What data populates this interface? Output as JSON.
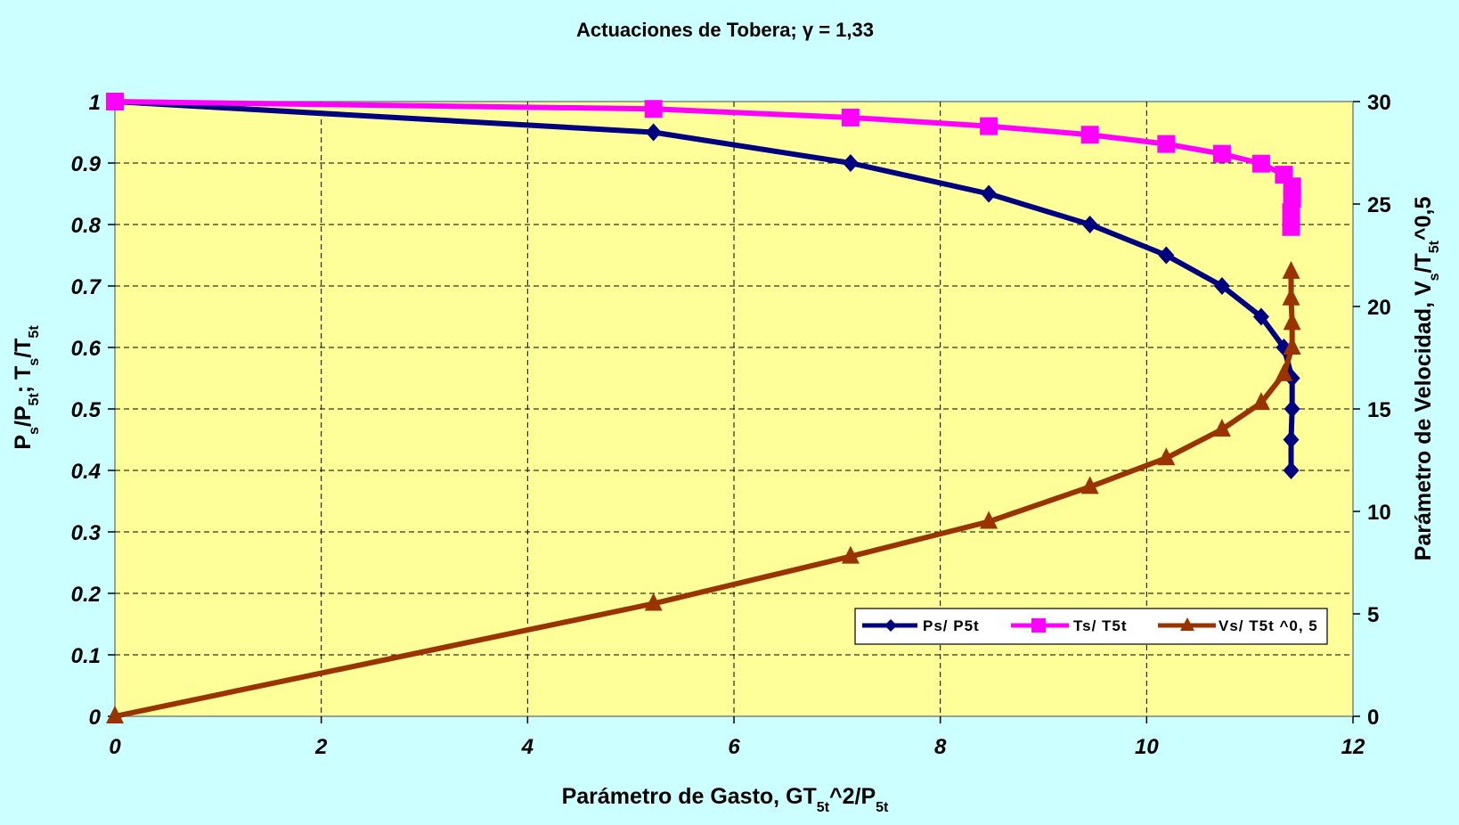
{
  "chart_data": {
    "type": "line",
    "title": "Actuaciones de Tobera; γ = 1,33",
    "xlabel": {
      "base": "Parámetro de Gasto, GT",
      "sub1": "5t",
      "mid": "^2/P",
      "sub2": "5t"
    },
    "ylabel": {
      "p": "P",
      "s1": "s",
      "slash1": "/P",
      "s2": "5t",
      "mid": "; T",
      "s3": "s",
      "slash2": "/T",
      "s4": "5t"
    },
    "y2label": {
      "pre": "Parámetro de Velocidad, V",
      "s1": "s",
      "mid": "/T",
      "s2": "5t",
      "post": "^0,5"
    },
    "xlim": [
      0,
      12
    ],
    "ylim": [
      0,
      1
    ],
    "y2lim": [
      0,
      30
    ],
    "x_ticks": [
      "0",
      "2",
      "4",
      "6",
      "8",
      "10",
      "12"
    ],
    "y_ticks": [
      "0",
      "0.1",
      "0.2",
      "0.3",
      "0.4",
      "0.5",
      "0.6",
      "0.7",
      "0.8",
      "0.9",
      "1"
    ],
    "y2_ticks": [
      "0",
      "5",
      "10",
      "15",
      "20",
      "25",
      "30"
    ],
    "grid": true,
    "legend_position": "bottom-right",
    "plot_bg": "#ffff99",
    "page_bg": "#ccffff",
    "series": [
      {
        "name": "Ps/ P5t",
        "axis": "left",
        "color": "#000080",
        "marker": "diamond",
        "points": [
          [
            0,
            1
          ],
          [
            5.22,
            0.95
          ],
          [
            7.13,
            0.9
          ],
          [
            8.47,
            0.85
          ],
          [
            9.45,
            0.8
          ],
          [
            10.19,
            0.75
          ],
          [
            10.73,
            0.7
          ],
          [
            11.11,
            0.65
          ],
          [
            11.33,
            0.6
          ],
          [
            11.41,
            0.55
          ],
          [
            11.41,
            0.5
          ],
          [
            11.4,
            0.45
          ],
          [
            11.4,
            0.4
          ]
        ]
      },
      {
        "name": "Ts/ T5t",
        "axis": "left",
        "color": "#ff00ff",
        "marker": "square",
        "points": [
          [
            0,
            1
          ],
          [
            5.22,
            0.988
          ],
          [
            7.13,
            0.974
          ],
          [
            8.47,
            0.96
          ],
          [
            9.45,
            0.946
          ],
          [
            10.19,
            0.931
          ],
          [
            10.73,
            0.915
          ],
          [
            11.11,
            0.899
          ],
          [
            11.33,
            0.881
          ],
          [
            11.41,
            0.862
          ],
          [
            11.41,
            0.842
          ],
          [
            11.4,
            0.82
          ],
          [
            11.4,
            0.796
          ]
        ]
      },
      {
        "name": "Vs/ T5t ^0, 5",
        "axis": "right",
        "color": "#993300",
        "marker": "triangle",
        "points": [
          [
            0,
            0
          ],
          [
            5.22,
            5.5
          ],
          [
            7.13,
            7.8
          ],
          [
            8.47,
            9.5
          ],
          [
            9.45,
            11.2
          ],
          [
            10.19,
            12.6
          ],
          [
            10.73,
            14.0
          ],
          [
            11.11,
            15.3
          ],
          [
            11.33,
            16.7
          ],
          [
            11.41,
            18.0
          ],
          [
            11.41,
            19.2
          ],
          [
            11.4,
            20.4
          ],
          [
            11.4,
            21.7
          ]
        ]
      }
    ]
  }
}
